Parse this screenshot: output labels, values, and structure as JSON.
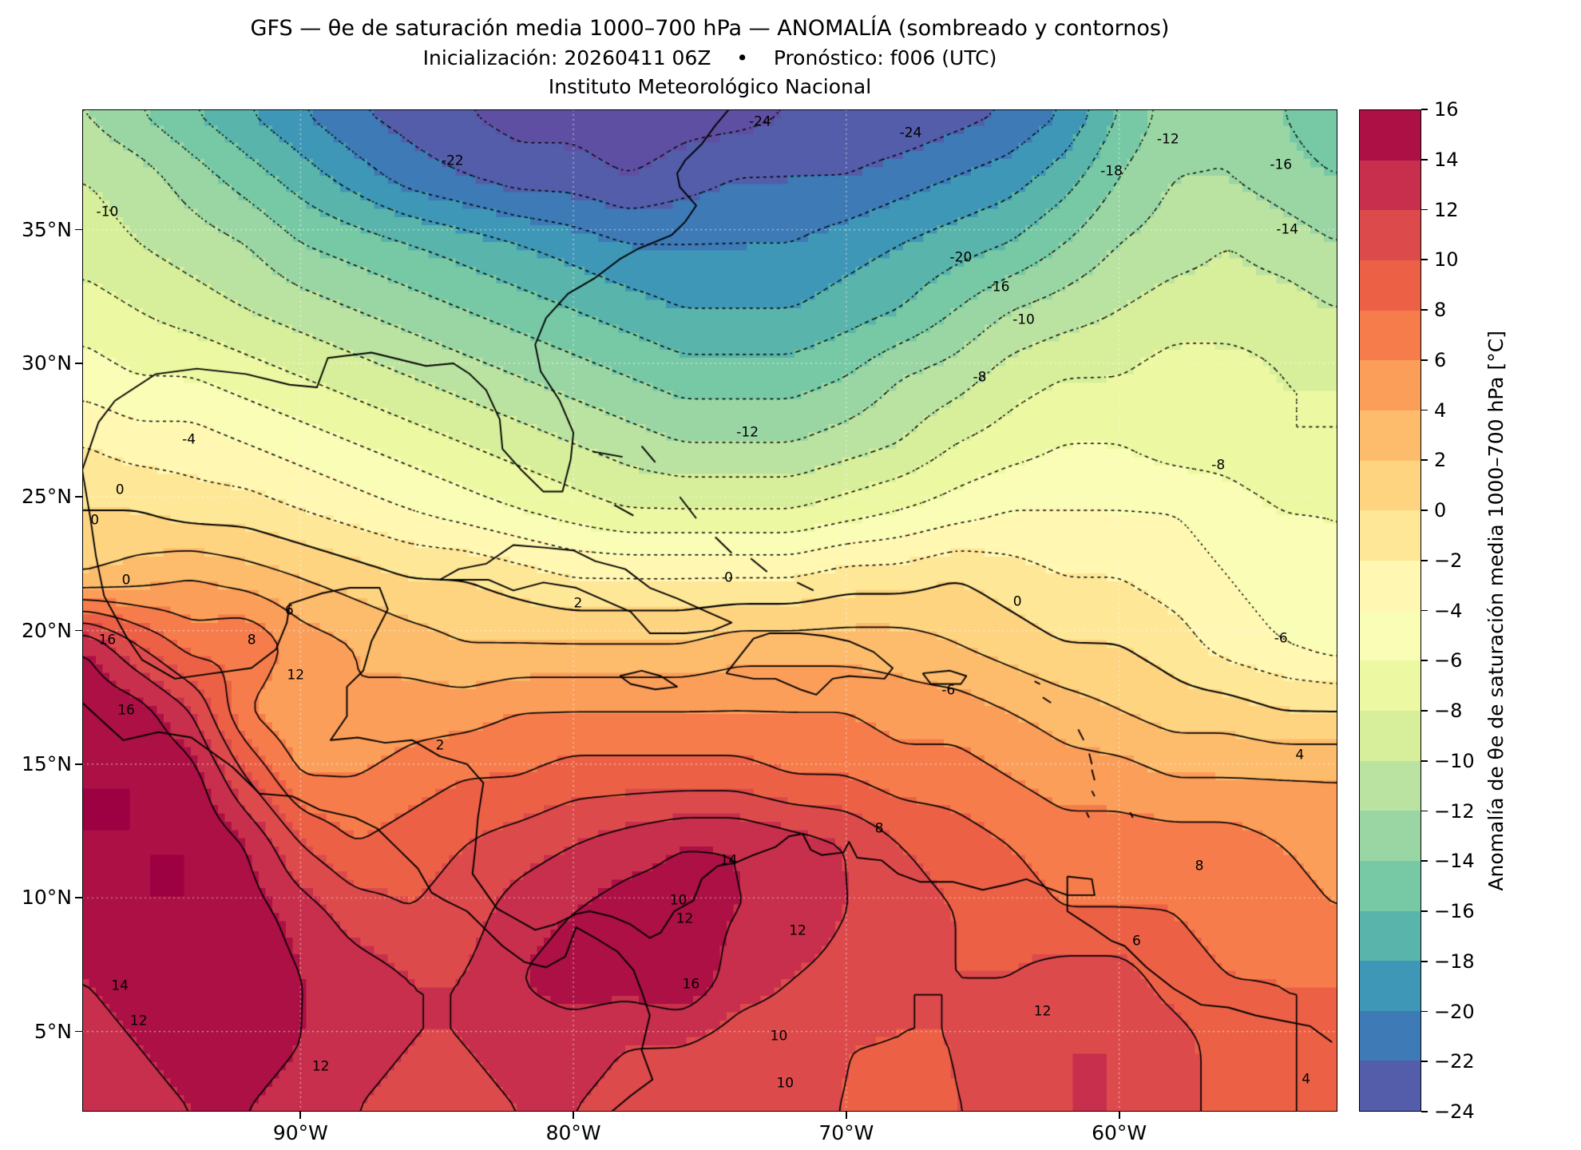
{
  "header": {
    "title": "GFS — θe de saturación media 1000–700 hPa — ANOMALÍA (sombreado y contornos)",
    "subtitle": "Inicialización: 20260411 06Z    •    Pronóstico: f006 (UTC)",
    "institution": "Instituto Meteorológico Nacional"
  },
  "axes": {
    "x_ticks": [
      {
        "label": "90°W",
        "lon": -90
      },
      {
        "label": "80°W",
        "lon": -80
      },
      {
        "label": "70°W",
        "lon": -70
      },
      {
        "label": "60°W",
        "lon": -60
      }
    ],
    "y_ticks": [
      {
        "label": "5°N",
        "lat": 5
      },
      {
        "label": "10°N",
        "lat": 10
      },
      {
        "label": "15°N",
        "lat": 15
      },
      {
        "label": "20°N",
        "lat": 20
      },
      {
        "label": "25°N",
        "lat": 25
      },
      {
        "label": "30°N",
        "lat": 30
      },
      {
        "label": "35°N",
        "lat": 35
      }
    ]
  },
  "colorbar": {
    "label": "Anomalía de θe de saturación media 1000–700 hPa [°C]",
    "min": -24,
    "max": 16,
    "step": 2,
    "ticks": [
      -24,
      -22,
      -20,
      -18,
      -16,
      -14,
      -12,
      -10,
      -8,
      -6,
      -4,
      -2,
      0,
      2,
      4,
      6,
      8,
      10,
      12,
      14,
      16
    ],
    "colors": [
      "#535da9",
      "#3d7ab6",
      "#3f97b7",
      "#59b4ab",
      "#77c9a5",
      "#9ad6a4",
      "#bae3a1",
      "#d7ef9b",
      "#ecf8a2",
      "#f9fdb5",
      "#fff7b2",
      "#fee898",
      "#fed481",
      "#fdbb6c",
      "#fb9e5a",
      "#f67d4b",
      "#ec6146",
      "#dd4a4c",
      "#c72f4c",
      "#ac1045"
    ],
    "under_color": "#5e4fa2",
    "over_color": "#9e0142"
  },
  "chart_data": {
    "type": "heatmap",
    "subtype": "filled_contour_map",
    "title": "GFS — θe de saturación media 1000–700 hPa — ANOMALÍA (sombreado y contornos)",
    "model": "GFS",
    "init": "20260411 06Z",
    "forecast": "f006 (UTC)",
    "variable": "Anomalía de θe de saturación media 1000–700 hPa",
    "units": "°C",
    "contour_interval": 2,
    "negative_contours_dotted": true,
    "shade_range": [
      -24,
      16
    ],
    "lon_range": [
      -98,
      -52
    ],
    "lat_range": [
      2,
      39.5
    ],
    "lons": [
      -98,
      -96,
      -94,
      -92,
      -90,
      -88,
      -86,
      -84,
      -82,
      -80,
      -78,
      -76,
      -74,
      -72,
      -70,
      -68,
      -66,
      -64,
      -62,
      -60,
      -58,
      -56,
      -54,
      -52
    ],
    "lats": [
      39.5,
      37,
      34.5,
      32,
      29.5,
      27,
      24.5,
      22,
      19.5,
      17,
      14.5,
      12,
      9.5,
      7,
      4.5,
      2
    ],
    "values_c": [
      [
        -12,
        -14,
        -16,
        -18,
        -20,
        -22,
        -23,
        -24,
        -25,
        -25,
        -26,
        -25,
        -25,
        -24,
        -24,
        -24,
        -23,
        -22,
        -20,
        -16,
        -13,
        -12,
        -14,
        -16
      ],
      [
        -10,
        -11,
        -13,
        -15,
        -17,
        -19,
        -21,
        -22,
        -23,
        -23,
        -24,
        -23,
        -22,
        -22,
        -22,
        -21,
        -20,
        -19,
        -17,
        -14,
        -12,
        -12,
        -13,
        -14
      ],
      [
        -9,
        -10,
        -11,
        -12,
        -14,
        -15,
        -16,
        -17,
        -18,
        -19,
        -20,
        -20,
        -20,
        -20,
        -19,
        -18,
        -17,
        -16,
        -14,
        -12,
        -11,
        -10,
        -11,
        -12
      ],
      [
        -7,
        -8,
        -9,
        -10,
        -11,
        -12,
        -13,
        -14,
        -15,
        -16,
        -17,
        -18,
        -18,
        -18,
        -17,
        -16,
        -14,
        -12,
        -11,
        -10,
        -9,
        -9,
        -9,
        -10
      ],
      [
        -5,
        -6,
        -6,
        -7,
        -8,
        -9,
        -10,
        -11,
        -12,
        -13,
        -14,
        -15,
        -15,
        -15,
        -14,
        -12,
        -11,
        -9,
        -8,
        -8,
        -7,
        -7,
        -8,
        -8
      ],
      [
        -2,
        -3,
        -3,
        -4,
        -5,
        -6,
        -7,
        -8,
        -9,
        -10,
        -11,
        -12,
        -12,
        -12,
        -11,
        -10,
        -8,
        -7,
        -6,
        -6,
        -7,
        -7,
        -8,
        -8
      ],
      [
        0,
        0,
        -1,
        -1,
        -2,
        -3,
        -4,
        -5,
        -6,
        -7,
        -8,
        -8,
        -8,
        -8,
        -7,
        -6,
        -5,
        -4,
        -4,
        -4,
        -4,
        -5,
        -6,
        -6
      ],
      [
        2,
        3,
        4,
        3,
        2,
        1,
        0,
        0,
        -1,
        -2,
        -2,
        -2,
        -2,
        -2,
        -1,
        -1,
        0,
        -1,
        -2,
        -2,
        -3,
        -4,
        -5,
        -6
      ],
      [
        14,
        10,
        7,
        8,
        5,
        4,
        3,
        2,
        2,
        2,
        2,
        2,
        3,
        3,
        3,
        3,
        2,
        1,
        0,
        0,
        -1,
        -3,
        -4,
        -5
      ],
      [
        16,
        15,
        12,
        6,
        4,
        4,
        5,
        5,
        6,
        6,
        6,
        6,
        6,
        6,
        6,
        5,
        5,
        4,
        3,
        2,
        1,
        1,
        0,
        0
      ],
      [
        16,
        16,
        15,
        10,
        6,
        6,
        7,
        8,
        8,
        9,
        9,
        9,
        9,
        8,
        8,
        7,
        7,
        6,
        5,
        5,
        4,
        4,
        4,
        4
      ],
      [
        16,
        16,
        16,
        14,
        10,
        8,
        9,
        10,
        11,
        12,
        13,
        14,
        14,
        13,
        12,
        10,
        9,
        8,
        7,
        7,
        7,
        7,
        6,
        5
      ],
      [
        15,
        16,
        16,
        15,
        13,
        11,
        10,
        11,
        13,
        14,
        15,
        15,
        14,
        14,
        12,
        11,
        10,
        9,
        8,
        8,
        8,
        7,
        7,
        6
      ],
      [
        14,
        15,
        16,
        16,
        14,
        13,
        12,
        12,
        14,
        15,
        15,
        16,
        13,
        12,
        11,
        10,
        10,
        10,
        11,
        11,
        9,
        8,
        8,
        8
      ],
      [
        13,
        14,
        15,
        15,
        14,
        13,
        12,
        12,
        13,
        13,
        12,
        12,
        11,
        11,
        10,
        10,
        10,
        11,
        12,
        12,
        11,
        9,
        8,
        8
      ],
      [
        12,
        13,
        14,
        14,
        13,
        12,
        11,
        11,
        12,
        12,
        11,
        10,
        10,
        10,
        10,
        9,
        10,
        10,
        12,
        12,
        11,
        9,
        8,
        8
      ]
    ],
    "contour_labels": [
      {
        "t": "-24",
        "x": 54,
        "y": 1.3
      },
      {
        "t": "-24",
        "x": 66,
        "y": 2.4
      },
      {
        "t": "-22",
        "x": 29.5,
        "y": 5.2
      },
      {
        "t": "-12",
        "x": 86.5,
        "y": 3.0
      },
      {
        "t": "-18",
        "x": 82,
        "y": 6.2
      },
      {
        "t": "-16",
        "x": 95.5,
        "y": 5.6
      },
      {
        "t": "-10",
        "x": 2,
        "y": 10.3
      },
      {
        "t": "-14",
        "x": 96,
        "y": 12.0
      },
      {
        "t": "-20",
        "x": 70,
        "y": 14.8
      },
      {
        "t": "-16",
        "x": 73,
        "y": 17.8
      },
      {
        "t": "-10",
        "x": 75,
        "y": 21.0
      },
      {
        "t": "-8",
        "x": 71.5,
        "y": 26.8
      },
      {
        "t": "-4",
        "x": 8.5,
        "y": 33.0
      },
      {
        "t": "-12",
        "x": 53,
        "y": 32.3
      },
      {
        "t": "-8",
        "x": 90.5,
        "y": 35.5
      },
      {
        "t": "0",
        "x": 3,
        "y": 38.0
      },
      {
        "t": "0",
        "x": 1,
        "y": 41.0
      },
      {
        "t": "0",
        "x": 3.5,
        "y": 47.0
      },
      {
        "t": "6",
        "x": 16.5,
        "y": 50.0
      },
      {
        "t": "2",
        "x": 39.5,
        "y": 49.3
      },
      {
        "t": "0",
        "x": 51.5,
        "y": 46.8
      },
      {
        "t": "0",
        "x": 74.5,
        "y": 49.2
      },
      {
        "t": "8",
        "x": 13.5,
        "y": 53.0
      },
      {
        "t": "-6",
        "x": 95.5,
        "y": 52.8
      },
      {
        "t": "16",
        "x": 2,
        "y": 53.0
      },
      {
        "t": "12",
        "x": 17,
        "y": 56.5
      },
      {
        "t": "16",
        "x": 3.5,
        "y": 60.0
      },
      {
        "t": "-6",
        "x": 69,
        "y": 58.0
      },
      {
        "t": "2",
        "x": 28.5,
        "y": 63.5
      },
      {
        "t": "4",
        "x": 97,
        "y": 64.5
      },
      {
        "t": "8",
        "x": 63.5,
        "y": 71.8
      },
      {
        "t": "14",
        "x": 51.5,
        "y": 75.0
      },
      {
        "t": "8",
        "x": 89,
        "y": 75.5
      },
      {
        "t": "10",
        "x": 47.5,
        "y": 79.0
      },
      {
        "t": "12",
        "x": 48,
        "y": 80.8
      },
      {
        "t": "12",
        "x": 57,
        "y": 82.0
      },
      {
        "t": "6",
        "x": 84,
        "y": 83.0
      },
      {
        "t": "14",
        "x": 3,
        "y": 87.5
      },
      {
        "t": "16",
        "x": 48.5,
        "y": 87.3
      },
      {
        "t": "12",
        "x": 4.5,
        "y": 91.0
      },
      {
        "t": "12",
        "x": 76.5,
        "y": 90.0
      },
      {
        "t": "10",
        "x": 55.5,
        "y": 92.5
      },
      {
        "t": "12",
        "x": 19,
        "y": 95.5
      },
      {
        "t": "10",
        "x": 56,
        "y": 97.2
      },
      {
        "t": "4",
        "x": 97.5,
        "y": 96.8
      }
    ]
  }
}
